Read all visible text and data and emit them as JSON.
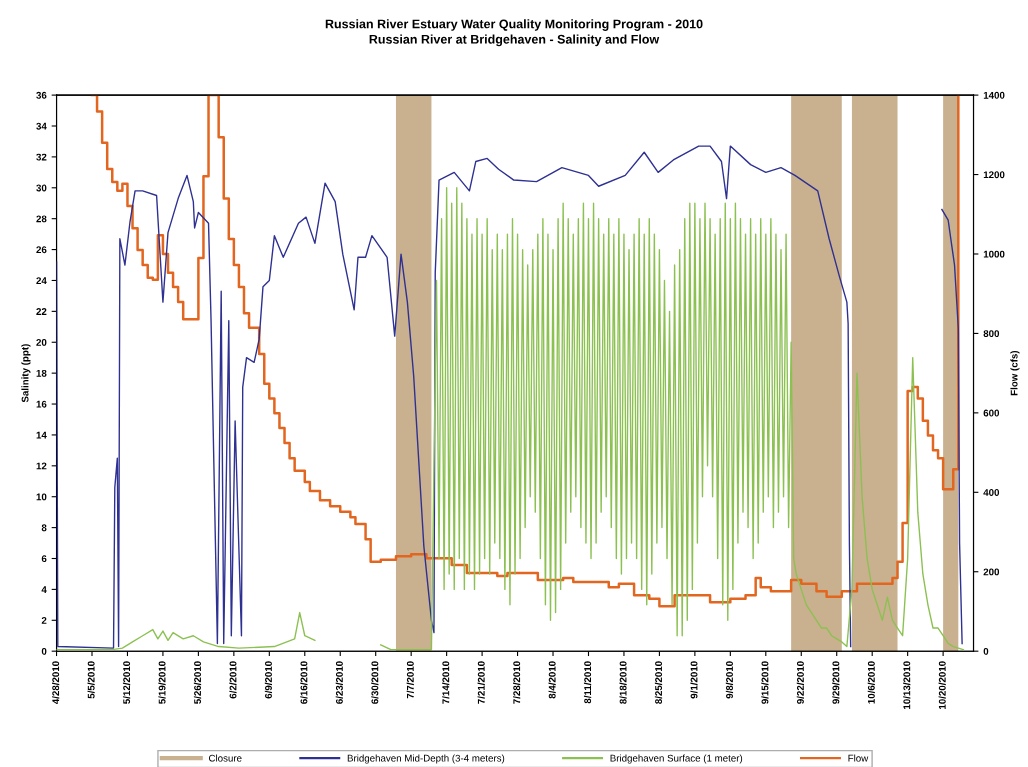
{
  "chart_data": {
    "type": "line",
    "title": "Russian River Estuary Water Quality Monitoring Program - 2010",
    "subtitle": "Russian River at Bridgehaven - Salinity and Flow",
    "ylabel": "Salinity (ppt)",
    "y2label": "Flow (cfs)",
    "xlim": [
      "2010-04-28",
      "2010-10-26"
    ],
    "xticks": [
      {
        "value": "2010-04-28",
        "label": "4/28/2010"
      },
      {
        "value": "2010-05-05",
        "label": "5/5/2010"
      },
      {
        "value": "2010-05-12",
        "label": "5/12/2010"
      },
      {
        "value": "2010-05-19",
        "label": "5/19/2010"
      },
      {
        "value": "2010-05-26",
        "label": "5/26/2010"
      },
      {
        "value": "2010-06-02",
        "label": "6/2/2010"
      },
      {
        "value": "2010-06-09",
        "label": "6/9/2010"
      },
      {
        "value": "2010-06-16",
        "label": "6/16/2010"
      },
      {
        "value": "2010-06-23",
        "label": "6/23/2010"
      },
      {
        "value": "2010-06-30",
        "label": "6/30/2010"
      },
      {
        "value": "2010-07-07",
        "label": "7/7/2010"
      },
      {
        "value": "2010-07-14",
        "label": "7/14/2010"
      },
      {
        "value": "2010-07-21",
        "label": "7/21/2010"
      },
      {
        "value": "2010-07-28",
        "label": "7/28/2010"
      },
      {
        "value": "2010-08-04",
        "label": "8/4/2010"
      },
      {
        "value": "2010-08-11",
        "label": "8/11/2010"
      },
      {
        "value": "2010-08-18",
        "label": "8/18/2010"
      },
      {
        "value": "2010-08-25",
        "label": "8/25/2010"
      },
      {
        "value": "2010-09-01",
        "label": "9/1/2010"
      },
      {
        "value": "2010-09-08",
        "label": "9/8/2010"
      },
      {
        "value": "2010-09-15",
        "label": "9/15/2010"
      },
      {
        "value": "2010-09-22",
        "label": "9/22/2010"
      },
      {
        "value": "2010-09-29",
        "label": "9/29/2010"
      },
      {
        "value": "2010-10-06",
        "label": "10/6/2010"
      },
      {
        "value": "2010-10-13",
        "label": "10/13/2010"
      },
      {
        "value": "2010-10-20",
        "label": "10/20/2010"
      }
    ],
    "ylim": [
      0,
      36
    ],
    "yticks": [
      0,
      2,
      4,
      6,
      8,
      10,
      12,
      14,
      16,
      18,
      20,
      22,
      24,
      26,
      28,
      30,
      32,
      34,
      36
    ],
    "y2lim": [
      0,
      1400
    ],
    "y2ticks": [
      0,
      200,
      400,
      600,
      800,
      1000,
      1200,
      1400
    ],
    "grid": false,
    "legend": "bottom",
    "bands": [
      {
        "axis": "x",
        "from": "2010-07-04",
        "to": "2010-07-11",
        "label": "Closure",
        "color": "#c9b08f"
      },
      {
        "axis": "x",
        "from": "2010-09-20",
        "to": "2010-09-30",
        "color": "#c9b08f"
      },
      {
        "axis": "x",
        "from": "2010-10-02",
        "to": "2010-10-11",
        "color": "#c9b08f"
      },
      {
        "axis": "x",
        "from": "2010-10-20",
        "to": "2010-10-23",
        "color": "#c9b08f"
      }
    ],
    "series": [
      {
        "name": "Bridgehaven Mid-Depth (3-4 meters)",
        "color": "#2e3192",
        "x": [
          "2010-04-28",
          "2010-04-28T06:00",
          "2010-05-09T06:00",
          "2010-05-09T12:00",
          "2010-05-10",
          "2010-05-10T06:00",
          "2010-05-10T12:00",
          "2010-05-11T12:00",
          "2010-05-12T12:00",
          "2010-05-13T12:00",
          "2010-05-15",
          "2010-05-17T18:00",
          "2010-05-18",
          "2010-05-19",
          "2010-05-20",
          "2010-05-22",
          "2010-05-23T18:00",
          "2010-05-25",
          "2010-05-25T06:00",
          "2010-05-26",
          "2010-05-28",
          "2010-05-28T12:00",
          "2010-05-29T18:00",
          "2010-05-30T12:00",
          "2010-05-31",
          "2010-06-01",
          "2010-06-01T12:00",
          "2010-06-02T06:00",
          "2010-06-03T12:00",
          "2010-06-03T18:00",
          "2010-06-04T12:00",
          "2010-06-06",
          "2010-06-07",
          "2010-06-07T18:00",
          "2010-06-09",
          "2010-06-10",
          "2010-06-11T18:00",
          "2010-06-14T18:00",
          "2010-06-16T06:00",
          "2010-06-18",
          "2010-06-20",
          "2010-06-22",
          "2010-06-23T12:00",
          "2010-06-25T18:00",
          "2010-06-26T12:00",
          "2010-06-28",
          "2010-06-29T06:00",
          "2010-07-02T06:00",
          "2010-07-03T18:00",
          "2010-07-05",
          "2010-07-06T06:00",
          "2010-07-07T12:00",
          "2010-07-09T12:00",
          "2010-07-11",
          "2010-07-11T12:00",
          "2010-07-11T18:00",
          "2010-07-12T12:00",
          "2010-07-15T12:00",
          "2010-07-18T12:00",
          "2010-07-19T18:00",
          "2010-07-22",
          "2010-07-24T06:00",
          "2010-07-27T06:00",
          "2010-07-31T18:00",
          "2010-08-05T18:00",
          "2010-08-11",
          "2010-08-13",
          "2010-08-18T06:00",
          "2010-08-22",
          "2010-08-24T18:00",
          "2010-08-27T18:00",
          "2010-09-01T18:00",
          "2010-09-04",
          "2010-09-06T06:00",
          "2010-09-07T06:00",
          "2010-09-08",
          "2010-09-12",
          "2010-09-15",
          "2010-09-18",
          "2010-09-20T18:00",
          "2010-09-25T06:00",
          "2010-09-27T12:00",
          "2010-09-29T12:00",
          "2010-10-01",
          "2010-10-01T06:00",
          "2010-10-01T12:00",
          "2010-10-01T18:00",
          "2010-10-10",
          "2010-10-19T18:00",
          "2010-10-21",
          "2010-10-22T06:00",
          "2010-10-23",
          "2010-10-23T06:00",
          "2010-10-23T18:00"
        ],
        "values": [
          25.2,
          0.3,
          0.2,
          10.6,
          12.5,
          0.3,
          26.7,
          25,
          27.8,
          29.8,
          29.8,
          29.5,
          28.1,
          22.6,
          27.1,
          29.3,
          30.8,
          29.1,
          27.4,
          28.4,
          27.7,
          21.4,
          0.5,
          23.3,
          0.5,
          21.4,
          1.0,
          14.9,
          1.0,
          17.1,
          19,
          18.7,
          20.2,
          23.6,
          24,
          26.9,
          25.5,
          27.7,
          28.1,
          26.4,
          30.3,
          29.1,
          25.7,
          22.1,
          25.5,
          25.5,
          26.9,
          25.5,
          20.4,
          25.7,
          22.6,
          17.8,
          6.8,
          2.0,
          1.2,
          24.5,
          30.5,
          31.0,
          29.8,
          31.7,
          31.9,
          31.2,
          30.5,
          30.4,
          31.3,
          30.8,
          30.1,
          30.8,
          32.3,
          31.0,
          31.8,
          32.7,
          32.7,
          31.7,
          29.3,
          32.7,
          31.5,
          31.0,
          31.3,
          30.8,
          29.8,
          26.7,
          24.3,
          22.6,
          21.2,
          7.0,
          0.3,
          null,
          28.6,
          27.9,
          25,
          20.9,
          7.0,
          0.5
        ]
      },
      {
        "name": "Bridgehaven Surface (1 meter)",
        "color": "#8cc152",
        "x": [
          "2010-04-28",
          "2010-05-09",
          "2010-05-11",
          "2010-05-13",
          "2010-05-15",
          "2010-05-17",
          "2010-05-18",
          "2010-05-19",
          "2010-05-20",
          "2010-05-21",
          "2010-05-23",
          "2010-05-25",
          "2010-05-27",
          "2010-05-30",
          "2010-06-03",
          "2010-06-10",
          "2010-06-14",
          "2010-06-15",
          "2010-06-16",
          "2010-06-18",
          "2010-06-19",
          "2010-07-01",
          "2010-07-03",
          "2010-07-11",
          "2010-07-12",
          "2010-07-12T12:00",
          "2010-07-13",
          "2010-07-13T12:00",
          "2010-07-14",
          "2010-07-14T12:00",
          "2010-07-15",
          "2010-07-15T12:00",
          "2010-07-16",
          "2010-07-16T12:00",
          "2010-07-17",
          "2010-07-17T12:00",
          "2010-07-18",
          "2010-07-18T12:00",
          "2010-07-19",
          "2010-07-19T12:00",
          "2010-07-20",
          "2010-07-20T12:00",
          "2010-07-21",
          "2010-07-21T12:00",
          "2010-07-22",
          "2010-07-22T12:00",
          "2010-07-23",
          "2010-07-23T12:00",
          "2010-07-24",
          "2010-07-24T12:00",
          "2010-07-25",
          "2010-07-25T12:00",
          "2010-07-26",
          "2010-07-26T12:00",
          "2010-07-27",
          "2010-07-27T12:00",
          "2010-07-28",
          "2010-07-28T12:00",
          "2010-07-29",
          "2010-07-29T12:00",
          "2010-07-30",
          "2010-07-30T12:00",
          "2010-07-31",
          "2010-07-31T12:00",
          "2010-08-01",
          "2010-08-01T12:00",
          "2010-08-02",
          "2010-08-02T12:00",
          "2010-08-03",
          "2010-08-03T12:00",
          "2010-08-04",
          "2010-08-04T12:00",
          "2010-08-05",
          "2010-08-05T12:00",
          "2010-08-06",
          "2010-08-06T12:00",
          "2010-08-07",
          "2010-08-07T12:00",
          "2010-08-08",
          "2010-08-08T12:00",
          "2010-08-09",
          "2010-08-09T12:00",
          "2010-08-10",
          "2010-08-10T12:00",
          "2010-08-11",
          "2010-08-11T12:00",
          "2010-08-12",
          "2010-08-12T12:00",
          "2010-08-13",
          "2010-08-13T12:00",
          "2010-08-14",
          "2010-08-14T12:00",
          "2010-08-15",
          "2010-08-15T12:00",
          "2010-08-16",
          "2010-08-16T12:00",
          "2010-08-17",
          "2010-08-17T12:00",
          "2010-08-18",
          "2010-08-18T12:00",
          "2010-08-19",
          "2010-08-19T12:00",
          "2010-08-20",
          "2010-08-20T12:00",
          "2010-08-21",
          "2010-08-21T12:00",
          "2010-08-22",
          "2010-08-22T12:00",
          "2010-08-23",
          "2010-08-23T12:00",
          "2010-08-24",
          "2010-08-24T12:00",
          "2010-08-25",
          "2010-08-25T12:00",
          "2010-08-26",
          "2010-08-26T12:00",
          "2010-08-27",
          "2010-08-27T12:00",
          "2010-08-28",
          "2010-08-28T12:00",
          "2010-08-29",
          "2010-08-29T12:00",
          "2010-08-30",
          "2010-08-30T12:00",
          "2010-08-31",
          "2010-08-31T12:00",
          "2010-09-01",
          "2010-09-01T12:00",
          "2010-09-02",
          "2010-09-02T12:00",
          "2010-09-03",
          "2010-09-03T12:00",
          "2010-09-04",
          "2010-09-04T12:00",
          "2010-09-05",
          "2010-09-05T12:00",
          "2010-09-06",
          "2010-09-06T12:00",
          "2010-09-07",
          "2010-09-07T12:00",
          "2010-09-08",
          "2010-09-08T12:00",
          "2010-09-09",
          "2010-09-09T12:00",
          "2010-09-10",
          "2010-09-10T12:00",
          "2010-09-11",
          "2010-09-11T12:00",
          "2010-09-12",
          "2010-09-12T12:00",
          "2010-09-13",
          "2010-09-13T12:00",
          "2010-09-14",
          "2010-09-14T12:00",
          "2010-09-15",
          "2010-09-15T12:00",
          "2010-09-16",
          "2010-09-16T12:00",
          "2010-09-17",
          "2010-09-17T12:00",
          "2010-09-18",
          "2010-09-18T12:00",
          "2010-09-19",
          "2010-09-19T12:00",
          "2010-09-20",
          "2010-09-20T12:00",
          "2010-09-21",
          "2010-09-22",
          "2010-09-23",
          "2010-09-24",
          "2010-09-25",
          "2010-09-26",
          "2010-09-27",
          "2010-09-28",
          "2010-09-29",
          "2010-09-30",
          "2010-10-01",
          "2010-10-02",
          "2010-10-03",
          "2010-10-04",
          "2010-10-05",
          "2010-10-06",
          "2010-10-07",
          "2010-10-08",
          "2010-10-09",
          "2010-10-10",
          "2010-10-11",
          "2010-10-12",
          "2010-10-13",
          "2010-10-14",
          "2010-10-15",
          "2010-10-16",
          "2010-10-17",
          "2010-10-18",
          "2010-10-19",
          "2010-10-20",
          "2010-10-21",
          "2010-10-22",
          "2010-10-23",
          "2010-10-24"
        ],
        "values": [
          0.1,
          0.1,
          0.2,
          0.6,
          1.0,
          1.4,
          0.8,
          1.3,
          0.7,
          1.2,
          0.8,
          1.0,
          0.6,
          0.3,
          0.2,
          0.3,
          0.8,
          2.5,
          1.0,
          0.7,
          null,
          0.4,
          0.1,
          0.1,
          24,
          6,
          28,
          4,
          30,
          5,
          29,
          4,
          30,
          6,
          29,
          4,
          28,
          5,
          27,
          4,
          28,
          5,
          27,
          6,
          28,
          5,
          26,
          7,
          27,
          6,
          26,
          4,
          27,
          3,
          28,
          5,
          27,
          6,
          26,
          8,
          25,
          10,
          26,
          9,
          27,
          6,
          28,
          3,
          27,
          2,
          26,
          2.5,
          28,
          4,
          29,
          7,
          28,
          9,
          27,
          10,
          28,
          8,
          29,
          7,
          28,
          6,
          29,
          7,
          28,
          9,
          27,
          10,
          28,
          8,
          27,
          6,
          28,
          5,
          27,
          6,
          26,
          7,
          27,
          6,
          28,
          4,
          27,
          3,
          28,
          5,
          27,
          7,
          26,
          8,
          24,
          6,
          22,
          3,
          25,
          1,
          26,
          1,
          28,
          2,
          29,
          4,
          29,
          7,
          28,
          10,
          29,
          12,
          28,
          10,
          27,
          6,
          28,
          3,
          29,
          2,
          28,
          4,
          29,
          7,
          28,
          9,
          27,
          8,
          28,
          6,
          27,
          7,
          28,
          9,
          27,
          10,
          28,
          8,
          27,
          9,
          26,
          10,
          27,
          8,
          20,
          6,
          5,
          4,
          3,
          2.5,
          2,
          1.5,
          1.5,
          1,
          0.8,
          0.6,
          0.3,
          4,
          18,
          10,
          6,
          4,
          3,
          2,
          3.5,
          2,
          1.5,
          1,
          6,
          19,
          9,
          5,
          3,
          1.5,
          1.5,
          1,
          0.5,
          0.3,
          0.2,
          0.1
        ]
      },
      {
        "name": "Flow",
        "type": "step",
        "axis": "y2",
        "color": "#e2661f",
        "x": [
          "2010-05-05",
          "2010-05-06",
          "2010-05-07",
          "2010-05-08",
          "2010-05-09",
          "2010-05-10",
          "2010-05-11",
          "2010-05-12",
          "2010-05-13",
          "2010-05-14",
          "2010-05-15",
          "2010-05-16",
          "2010-05-17",
          "2010-05-18",
          "2010-05-19",
          "2010-05-20",
          "2010-05-21",
          "2010-05-22",
          "2010-05-23",
          "2010-05-26",
          "2010-05-27",
          "2010-05-28",
          "2010-05-30",
          "2010-05-31",
          "2010-06-01",
          "2010-06-02",
          "2010-06-03",
          "2010-06-04",
          "2010-06-05",
          "2010-06-07",
          "2010-06-08",
          "2010-06-09",
          "2010-06-10",
          "2010-06-11",
          "2010-06-12",
          "2010-06-13",
          "2010-06-14",
          "2010-06-16",
          "2010-06-17",
          "2010-06-19",
          "2010-06-21",
          "2010-06-23",
          "2010-06-25",
          "2010-06-26",
          "2010-06-28",
          "2010-06-29",
          "2010-07-01",
          "2010-07-04",
          "2010-07-07",
          "2010-07-10",
          "2010-07-15",
          "2010-07-18",
          "2010-07-24",
          "2010-07-26",
          "2010-08-01",
          "2010-08-06",
          "2010-08-08",
          "2010-08-15",
          "2010-08-17",
          "2010-08-20",
          "2010-08-23",
          "2010-08-25",
          "2010-08-28",
          "2010-09-04",
          "2010-09-08",
          "2010-09-11",
          "2010-09-13",
          "2010-09-14",
          "2010-09-16",
          "2010-09-20",
          "2010-09-22",
          "2010-09-25",
          "2010-09-27",
          "2010-09-30",
          "2010-10-03",
          "2010-10-10",
          "2010-10-11",
          "2010-10-12",
          "2010-10-13",
          "2010-10-14",
          "2010-10-15",
          "2010-10-16",
          "2010-10-17",
          "2010-10-18",
          "2010-10-19",
          "2010-10-20",
          "2010-10-22",
          "2010-10-23"
        ],
        "values": [
          1400,
          1359,
          1280,
          1214,
          1181,
          1159,
          1177,
          1121,
          1065,
          1010,
          972,
          940,
          935,
          1047,
          1000,
          953,
          917,
          879,
          836,
          990,
          1196,
          1400,
          1294,
          1140,
          1038,
          972,
          917,
          851,
          814,
          748,
          673,
          636,
          599,
          562,
          524,
          486,
          454,
          426,
          403,
          380,
          365,
          351,
          337,
          320,
          282,
          225,
          230,
          239,
          244,
          234,
          217,
          197,
          189,
          197,
          179,
          184,
          174,
          161,
          170,
          141,
          132,
          113,
          141,
          123,
          132,
          141,
          184,
          161,
          151,
          179,
          170,
          151,
          137,
          151,
          170,
          184,
          225,
          323,
          655,
          665,
          636,
          580,
          543,
          506,
          486,
          408,
          458,
          1400
        ]
      }
    ]
  }
}
